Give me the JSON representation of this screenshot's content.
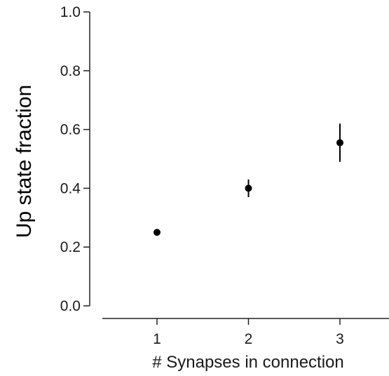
{
  "chart_data": {
    "type": "scatter",
    "xlabel": "# Synapses in connection",
    "ylabel": "Up state fraction",
    "x_ticks": [
      1,
      2,
      3
    ],
    "y_ticks": [
      "0.0",
      "0.2",
      "0.4",
      "0.6",
      "0.8",
      "1.0"
    ],
    "xlim": [
      0.4,
      3.55
    ],
    "ylim": [
      0,
      1.0
    ],
    "grid": false,
    "points": [
      {
        "x": 1,
        "y": 0.25,
        "err_low": 0.25,
        "err_high": 0.25
      },
      {
        "x": 2,
        "y": 0.4,
        "err_low": 0.37,
        "err_high": 0.43
      },
      {
        "x": 3,
        "y": 0.555,
        "err_low": 0.49,
        "err_high": 0.62
      }
    ],
    "marker_color": "#000000"
  }
}
